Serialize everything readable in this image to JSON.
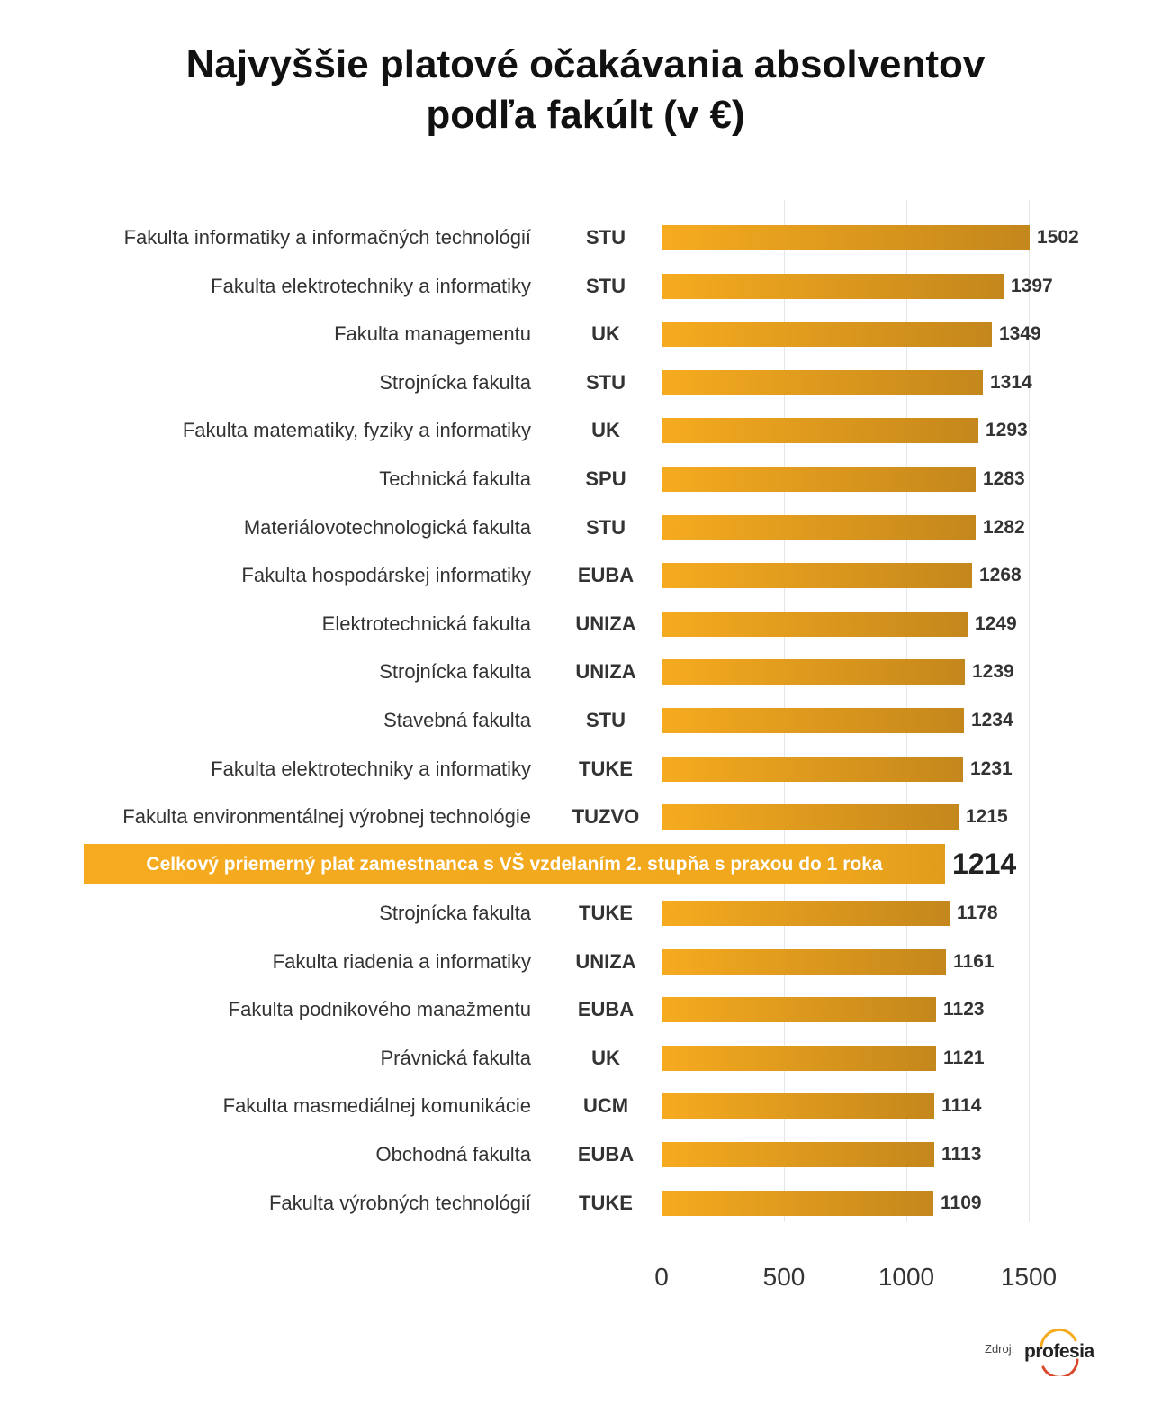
{
  "title_lines": [
    "Najvyššie platové očakávania absolventov",
    "podľa fakúlt (v €)"
  ],
  "chart_data": {
    "type": "bar",
    "orientation": "horizontal",
    "title": "Najvyššie platové očakávania absolventov podľa fakúlt (v €)",
    "xlabel": "",
    "ylabel": "",
    "xlim": [
      0,
      1500
    ],
    "ticks": [
      "0",
      "500",
      "1000",
      "1500"
    ],
    "rows_above": [
      {
        "faculty": "Fakulta informatiky a informačných technológií",
        "university": "STU",
        "value": 1502
      },
      {
        "faculty": "Fakulta elektrotechniky a informatiky",
        "university": "STU",
        "value": 1397
      },
      {
        "faculty": "Fakulta managementu",
        "university": "UK",
        "value": 1349
      },
      {
        "faculty": "Strojnícka fakulta",
        "university": "STU",
        "value": 1314
      },
      {
        "faculty": "Fakulta matematiky, fyziky a informatiky",
        "university": "UK",
        "value": 1293
      },
      {
        "faculty": "Technická fakulta",
        "university": "SPU",
        "value": 1283
      },
      {
        "faculty": "Materiálovotechnologická fakulta",
        "university": "STU",
        "value": 1282
      },
      {
        "faculty": "Fakulta hospodárskej informatiky",
        "university": "EUBA",
        "value": 1268
      },
      {
        "faculty": "Elektrotechnická fakulta",
        "university": "UNIZA",
        "value": 1249
      },
      {
        "faculty": "Strojnícka fakulta",
        "university": "UNIZA",
        "value": 1239
      },
      {
        "faculty": "Stavebná fakulta",
        "university": "STU",
        "value": 1234
      },
      {
        "faculty": "Fakulta elektrotechniky a informatiky",
        "university": "TUKE",
        "value": 1231
      },
      {
        "faculty": "Fakulta environmentálnej výrobnej technológie",
        "university": "TUZVO",
        "value": 1215
      }
    ],
    "average": {
      "label": "Celkový priemerný plat zamestnanca s VŠ vzdelaním 2. stupňa s praxou do 1 roka",
      "value": 1214
    },
    "rows_below": [
      {
        "faculty": "Strojnícka fakulta",
        "university": "TUKE",
        "value": 1178
      },
      {
        "faculty": "Fakulta riadenia a informatiky",
        "university": "UNIZA",
        "value": 1161
      },
      {
        "faculty": "Fakulta podnikového manažmentu",
        "university": "EUBA",
        "value": 1123
      },
      {
        "faculty": "Právnická fakulta",
        "university": "UK",
        "value": 1121
      },
      {
        "faculty": "Fakulta masmediálnej komunikácie",
        "university": "UCM",
        "value": 1114
      },
      {
        "faculty": "Obchodná fakulta",
        "university": "EUBA",
        "value": 1113
      },
      {
        "faculty": "Fakulta výrobných technológií",
        "university": "TUKE",
        "value": 1109
      }
    ],
    "colors": {
      "bar_start": "#f6ab1f",
      "bar_end": "#c4871c"
    }
  },
  "source": {
    "label": "Zdroj:",
    "brand": "profesia"
  }
}
